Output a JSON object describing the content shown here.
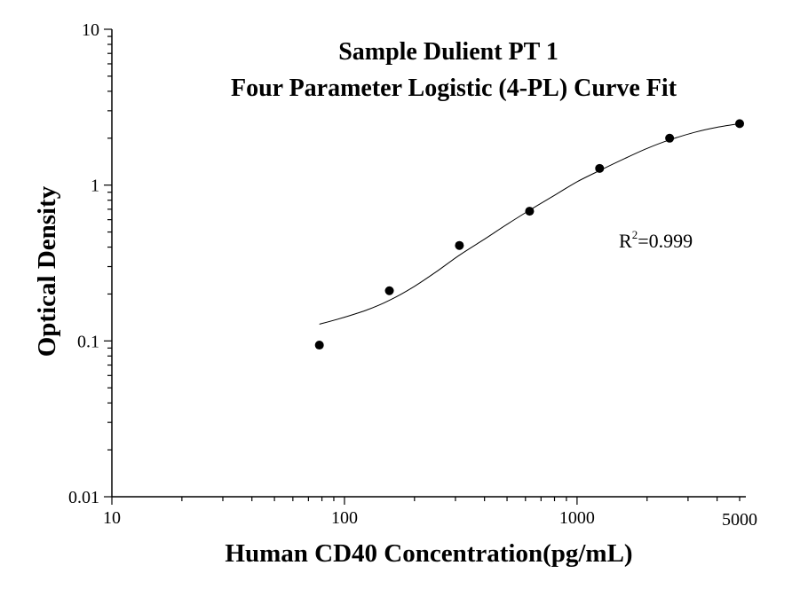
{
  "chart_data": {
    "type": "scatter",
    "title": "Sample Dulient PT 1",
    "subtitle": "Four Parameter Logistic (4-PL) Curve Fit",
    "xlabel": "Human CD40 Concentration(pg/mL)",
    "ylabel": "Optical Density",
    "x_scale": "log",
    "y_scale": "log",
    "xlim": [
      10,
      5500
    ],
    "ylim": [
      0.01,
      10
    ],
    "x_ticks": [
      {
        "value": 10,
        "label": "10"
      },
      {
        "value": 100,
        "label": "100"
      },
      {
        "value": 1000,
        "label": "1000"
      },
      {
        "value": 5000,
        "label": "5000"
      }
    ],
    "y_ticks": [
      {
        "value": 0.01,
        "label": "0.01"
      },
      {
        "value": 0.1,
        "label": "0.1"
      },
      {
        "value": 1,
        "label": "1"
      },
      {
        "value": 10,
        "label": "10"
      }
    ],
    "grid": false,
    "points": [
      {
        "x": 78,
        "y": 0.094
      },
      {
        "x": 156,
        "y": 0.21
      },
      {
        "x": 312,
        "y": 0.41
      },
      {
        "x": 625,
        "y": 0.68
      },
      {
        "x": 1250,
        "y": 1.28
      },
      {
        "x": 2500,
        "y": 2.0
      },
      {
        "x": 5000,
        "y": 2.48
      }
    ],
    "fit_curve": {
      "model": "4-PL",
      "x": [
        78,
        100,
        125,
        156,
        200,
        250,
        312,
        400,
        500,
        625,
        800,
        1000,
        1250,
        1600,
        2000,
        2500,
        3200,
        4000,
        5000
      ],
      "y": [
        0.128,
        0.142,
        0.158,
        0.182,
        0.224,
        0.28,
        0.355,
        0.45,
        0.56,
        0.69,
        0.86,
        1.05,
        1.24,
        1.48,
        1.72,
        1.95,
        2.18,
        2.35,
        2.48
      ]
    },
    "annotation": {
      "prefix": "R",
      "superscript": "2",
      "text": "=0.999"
    }
  }
}
